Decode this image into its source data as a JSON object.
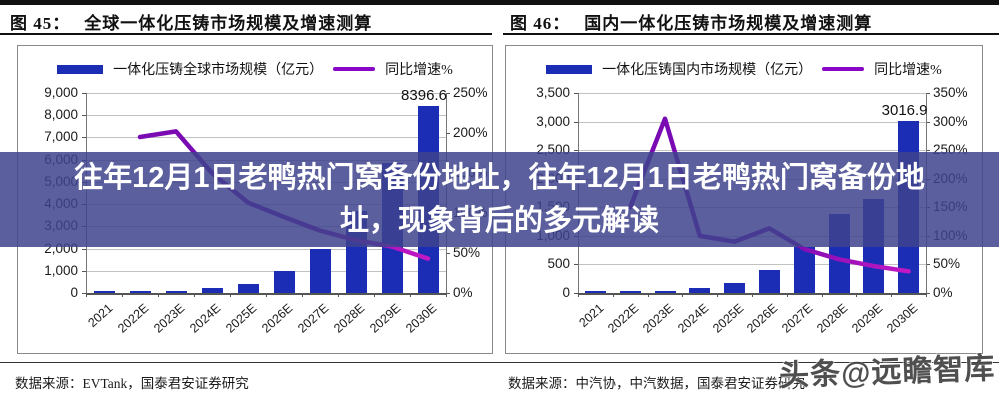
{
  "overlay": {
    "line1": "往年12月1日老鸭热门窝备份地址，往年12月1日老鸭热门窝备份地",
    "line2": "址，现象背后的多元解读",
    "bg": "rgba(62,67,140,0.85)"
  },
  "watermark": "头条@远瞻智库",
  "colors": {
    "bar": "#1b2db5",
    "line_start": "#7a0bb3",
    "line_end": "#c418c4",
    "legend_line": "#8806c6"
  },
  "left_chart": {
    "fig_label": "图  45：",
    "title": "全球一体化压铸市场规模及增速测算",
    "source": "数据来源：EVTank，国泰君安证券研究",
    "chart_data": {
      "type": "bar",
      "title": "全球一体化压铸市场规模及增速测算",
      "categories": [
        "2021",
        "2022E",
        "2023E",
        "2024E",
        "2025E",
        "2026E",
        "2027E",
        "2028E",
        "2029E",
        "2030E"
      ],
      "series": [
        {
          "name": "一体化压铸全球市场规模（亿元）",
          "type": "bar",
          "axis": "left",
          "values": [
            90,
            100,
            110,
            210,
            420,
            1000,
            1970,
            3690,
            5830,
            8396.6
          ]
        },
        {
          "name": "同比增速%",
          "type": "line",
          "axis": "right",
          "values": [
            null,
            195,
            202,
            150,
            113,
            95,
            78,
            66,
            58,
            43
          ]
        }
      ],
      "ylim_left": [
        0,
        9000
      ],
      "ystep_left": 1000,
      "ylim_right": [
        0,
        250
      ],
      "ystep_right": 50,
      "right_unit": "%",
      "grid": true,
      "legend_position": "top",
      "annotation": {
        "category": "2030E",
        "text": "8396.6"
      }
    }
  },
  "right_chart": {
    "fig_label": "图  46：",
    "title": "国内一体化压铸市场规模及增速测算",
    "source": "数据来源：中汽协，中汽数据，国泰君安证券研究",
    "chart_data": {
      "type": "bar",
      "title": "国内一体化压铸市场规模及增速测算",
      "categories": [
        "2021",
        "2022E",
        "2023E",
        "2024E",
        "2025E",
        "2026E",
        "2027E",
        "2028E",
        "2029E",
        "2030E"
      ],
      "series": [
        {
          "name": "一体化压铸国内市场规模（亿元）",
          "type": "bar",
          "axis": "left",
          "values": [
            30,
            35,
            30,
            95,
            180,
            400,
            810,
            1380,
            1640,
            3016.9
          ]
        },
        {
          "name": "同比增速%",
          "type": "line",
          "axis": "right",
          "values": [
            null,
            150,
            305,
            100,
            90,
            113,
            77,
            59,
            47,
            38
          ]
        }
      ],
      "ylim_left": [
        0,
        3500
      ],
      "ystep_left": 500,
      "ylim_right": [
        0,
        350
      ],
      "ystep_right": 50,
      "right_unit": "%",
      "grid": true,
      "legend_position": "top",
      "annotation": {
        "category": "2030E",
        "text": "3016.9"
      }
    }
  }
}
